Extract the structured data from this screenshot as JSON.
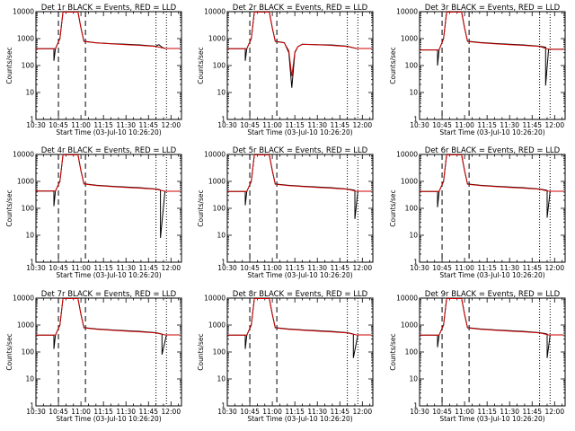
{
  "chart_data": [
    {
      "type": "line",
      "title": "Det 1r BLACK = Events, RED = LLD",
      "xlabel": "Start Time (03-Jul-10 10:26:20)",
      "ylabel": "Counts/sec",
      "xlim": [
        "10:30",
        "12:07"
      ],
      "ylim": [
        1,
        10000
      ],
      "yscale": "log",
      "x_ticks": [
        "10:30",
        "10:45",
        "11:00",
        "11:15",
        "11:30",
        "11:45",
        "12:00"
      ],
      "y_ticks": [
        "1",
        "10",
        "100",
        "1000",
        "10000"
      ],
      "dashed_lines": [
        "10:45",
        "11:03"
      ],
      "dotted_lines": [
        "11:50",
        "11:57"
      ],
      "series": [
        {
          "color": "#000000",
          "x": [
            "10:30",
            "10:42",
            "10:42",
            "10:43",
            "10:46",
            "10:48",
            "10:58",
            "11:00",
            "11:02",
            "11:10",
            "11:20",
            "11:30",
            "11:40",
            "11:50",
            "11:52",
            "11:54",
            "11:56",
            "12:06"
          ],
          "values": [
            420,
            420,
            150,
            420,
            1000,
            12000,
            12000,
            2500,
            800,
            700,
            650,
            620,
            580,
            520,
            600,
            480,
            430,
            430
          ]
        },
        {
          "color": "#cc0000",
          "x": [
            "10:30",
            "10:43",
            "10:46",
            "10:48",
            "10:58",
            "11:00",
            "11:02",
            "11:10",
            "11:20",
            "11:30",
            "11:40",
            "11:50",
            "11:56",
            "12:06"
          ],
          "values": [
            420,
            420,
            1000,
            12000,
            12000,
            2500,
            780,
            690,
            640,
            600,
            560,
            510,
            430,
            430
          ]
        }
      ]
    },
    {
      "type": "line",
      "title": "Det 2r BLACK = Events, RED = LLD",
      "xlabel": "Start Time (03-Jul-10 10:26:20)",
      "ylabel": "Counts/sec",
      "xlim": [
        "10:30",
        "12:07"
      ],
      "ylim": [
        1,
        10000
      ],
      "yscale": "log",
      "x_ticks": [
        "10:30",
        "10:45",
        "11:00",
        "11:15",
        "11:30",
        "11:45",
        "12:00"
      ],
      "y_ticks": [
        "1",
        "10",
        "100",
        "1000",
        "10000"
      ],
      "dashed_lines": [
        "10:45",
        "11:03"
      ],
      "dotted_lines": [
        "11:50",
        "11:57"
      ],
      "series": [
        {
          "color": "#000000",
          "x": [
            "10:30",
            "10:42",
            "10:42",
            "10:43",
            "10:46",
            "10:48",
            "10:58",
            "11:00",
            "11:02",
            "11:08",
            "11:11",
            "11:13",
            "11:15",
            "11:17",
            "11:20",
            "11:30",
            "11:40",
            "11:50",
            "11:56",
            "12:06"
          ],
          "values": [
            420,
            420,
            150,
            420,
            1000,
            12000,
            12000,
            2500,
            800,
            700,
            300,
            15,
            300,
            500,
            620,
            600,
            580,
            520,
            430,
            430
          ]
        },
        {
          "color": "#cc0000",
          "x": [
            "10:30",
            "10:43",
            "10:46",
            "10:48",
            "10:58",
            "11:00",
            "11:02",
            "11:08",
            "11:11",
            "11:13",
            "11:15",
            "11:17",
            "11:20",
            "11:30",
            "11:40",
            "11:50",
            "11:56",
            "12:06"
          ],
          "values": [
            420,
            420,
            1000,
            12000,
            12000,
            2500,
            780,
            690,
            350,
            40,
            320,
            500,
            610,
            590,
            560,
            510,
            430,
            430
          ]
        }
      ]
    },
    {
      "type": "line",
      "title": "Det 3r BLACK = Events, RED = LLD",
      "xlabel": "Start Time (03-Jul-10 10:26:20)",
      "ylabel": "Counts/sec",
      "xlim": [
        "10:30",
        "12:07"
      ],
      "ylim": [
        1,
        10000
      ],
      "yscale": "log",
      "x_ticks": [
        "10:30",
        "10:45",
        "11:00",
        "11:15",
        "11:30",
        "11:45",
        "12:00"
      ],
      "y_ticks": [
        "1",
        "10",
        "100",
        "1000",
        "10000"
      ],
      "dashed_lines": [
        "10:45",
        "11:03"
      ],
      "dotted_lines": [
        "11:50",
        "11:57"
      ],
      "series": [
        {
          "color": "#000000",
          "x": [
            "10:30",
            "10:42",
            "10:42",
            "10:43",
            "10:46",
            "10:48",
            "10:58",
            "11:00",
            "11:02",
            "11:10",
            "11:20",
            "11:30",
            "11:40",
            "11:50",
            "11:52",
            "11:54",
            "11:54",
            "11:56",
            "12:06"
          ],
          "values": [
            380,
            380,
            100,
            380,
            1000,
            12000,
            12000,
            2500,
            800,
            720,
            660,
            620,
            580,
            520,
            500,
            480,
            18,
            400,
            400
          ]
        },
        {
          "color": "#cc0000",
          "x": [
            "10:30",
            "10:43",
            "10:46",
            "10:48",
            "10:58",
            "11:00",
            "11:02",
            "11:10",
            "11:20",
            "11:30",
            "11:40",
            "11:50",
            "11:56",
            "12:06"
          ],
          "values": [
            380,
            380,
            1000,
            12000,
            12000,
            2500,
            780,
            700,
            640,
            600,
            560,
            510,
            400,
            400
          ]
        }
      ]
    },
    {
      "type": "line",
      "title": "Det 4r BLACK = Events, RED = LLD",
      "xlabel": "Start Time (03-Jul-10 10:26:20)",
      "ylabel": "Counts/sec",
      "xlim": [
        "10:30",
        "12:07"
      ],
      "ylim": [
        1,
        10000
      ],
      "yscale": "log",
      "x_ticks": [
        "10:30",
        "10:45",
        "11:00",
        "11:15",
        "11:30",
        "11:45",
        "12:00"
      ],
      "y_ticks": [
        "1",
        "10",
        "100",
        "1000",
        "10000"
      ],
      "dashed_lines": [
        "10:45",
        "11:03"
      ],
      "dotted_lines": [
        "11:50",
        "11:57"
      ],
      "series": [
        {
          "color": "#000000",
          "x": [
            "10:30",
            "10:42",
            "10:42",
            "10:43",
            "10:46",
            "10:48",
            "10:58",
            "11:00",
            "11:02",
            "11:10",
            "11:20",
            "11:30",
            "11:40",
            "11:50",
            "11:52",
            "11:53",
            "11:53",
            "11:56",
            "12:06"
          ],
          "values": [
            440,
            440,
            120,
            440,
            1000,
            12000,
            12000,
            2500,
            820,
            720,
            660,
            620,
            580,
            520,
            500,
            480,
            8,
            430,
            430
          ]
        },
        {
          "color": "#cc0000",
          "x": [
            "10:30",
            "10:43",
            "10:46",
            "10:48",
            "10:58",
            "11:00",
            "11:02",
            "11:10",
            "11:20",
            "11:30",
            "11:40",
            "11:50",
            "11:56",
            "12:06"
          ],
          "values": [
            440,
            440,
            1000,
            12000,
            12000,
            2500,
            800,
            700,
            640,
            600,
            560,
            510,
            430,
            430
          ]
        }
      ]
    },
    {
      "type": "line",
      "title": "Det 5r BLACK = Events, RED = LLD",
      "xlabel": "Start Time (03-Jul-10 10:26:20)",
      "ylabel": "Counts/sec",
      "xlim": [
        "10:30",
        "12:07"
      ],
      "ylim": [
        1,
        10000
      ],
      "yscale": "log",
      "x_ticks": [
        "10:30",
        "10:45",
        "11:00",
        "11:15",
        "11:30",
        "11:45",
        "12:00"
      ],
      "y_ticks": [
        "1",
        "10",
        "100",
        "1000",
        "10000"
      ],
      "dashed_lines": [
        "10:45",
        "11:03"
      ],
      "dotted_lines": [
        "11:50",
        "11:57"
      ],
      "series": [
        {
          "color": "#000000",
          "x": [
            "10:30",
            "10:42",
            "10:42",
            "10:43",
            "10:46",
            "10:48",
            "10:58",
            "11:00",
            "11:02",
            "11:10",
            "11:20",
            "11:30",
            "11:40",
            "11:50",
            "11:54",
            "11:55",
            "11:55",
            "11:57",
            "12:06"
          ],
          "values": [
            420,
            420,
            130,
            420,
            1000,
            12000,
            12000,
            2500,
            800,
            720,
            660,
            620,
            580,
            520,
            480,
            460,
            40,
            430,
            430
          ]
        },
        {
          "color": "#cc0000",
          "x": [
            "10:30",
            "10:43",
            "10:46",
            "10:48",
            "10:58",
            "11:00",
            "11:02",
            "11:10",
            "11:20",
            "11:30",
            "11:40",
            "11:50",
            "11:56",
            "12:06"
          ],
          "values": [
            420,
            420,
            1000,
            12000,
            12000,
            2500,
            780,
            700,
            640,
            600,
            560,
            510,
            430,
            430
          ]
        }
      ]
    },
    {
      "type": "line",
      "title": "Det 6r BLACK = Events, RED = LLD",
      "xlabel": "Start Time (03-Jul-10 10:26:20)",
      "ylabel": "Counts/sec",
      "xlim": [
        "10:30",
        "12:07"
      ],
      "ylim": [
        1,
        10000
      ],
      "yscale": "log",
      "x_ticks": [
        "10:30",
        "10:45",
        "11:00",
        "11:15",
        "11:30",
        "11:45",
        "12:00"
      ],
      "y_ticks": [
        "1",
        "10",
        "100",
        "1000",
        "10000"
      ],
      "dashed_lines": [
        "10:45",
        "11:03"
      ],
      "dotted_lines": [
        "11:50",
        "11:57"
      ],
      "series": [
        {
          "color": "#000000",
          "x": [
            "10:30",
            "10:42",
            "10:42",
            "10:43",
            "10:46",
            "10:48",
            "10:58",
            "11:00",
            "11:02",
            "11:10",
            "11:20",
            "11:30",
            "11:40",
            "11:50",
            "11:54",
            "11:55",
            "11:55",
            "11:57",
            "12:06"
          ],
          "values": [
            420,
            420,
            110,
            420,
            1000,
            12000,
            12000,
            2500,
            800,
            720,
            660,
            620,
            580,
            520,
            480,
            460,
            45,
            430,
            430
          ]
        },
        {
          "color": "#cc0000",
          "x": [
            "10:30",
            "10:43",
            "10:46",
            "10:48",
            "10:58",
            "11:00",
            "11:02",
            "11:10",
            "11:20",
            "11:30",
            "11:40",
            "11:50",
            "11:56",
            "12:06"
          ],
          "values": [
            420,
            420,
            1000,
            12000,
            12000,
            2500,
            780,
            700,
            640,
            600,
            560,
            510,
            430,
            430
          ]
        }
      ]
    },
    {
      "type": "line",
      "title": "Det 7r BLACK = Events, RED = LLD",
      "xlabel": "Start Time (03-Jul-10 10:26:20)",
      "ylabel": "Counts/sec",
      "xlim": [
        "10:30",
        "12:07"
      ],
      "ylim": [
        1,
        10000
      ],
      "yscale": "log",
      "x_ticks": [
        "10:30",
        "10:45",
        "11:00",
        "11:15",
        "11:30",
        "11:45",
        "12:00"
      ],
      "y_ticks": [
        "1",
        "10",
        "100",
        "1000",
        "10000"
      ],
      "dashed_lines": [
        "10:45",
        "11:03"
      ],
      "dotted_lines": [
        "11:50",
        "11:57"
      ],
      "series": [
        {
          "color": "#000000",
          "x": [
            "10:30",
            "10:42",
            "10:42",
            "10:43",
            "10:46",
            "10:48",
            "10:58",
            "11:00",
            "11:02",
            "11:10",
            "11:20",
            "11:30",
            "11:40",
            "11:50",
            "11:53",
            "11:54",
            "11:54",
            "11:57",
            "12:06"
          ],
          "values": [
            420,
            420,
            130,
            420,
            1000,
            12000,
            12000,
            2500,
            800,
            720,
            660,
            620,
            580,
            520,
            480,
            460,
            80,
            430,
            430
          ]
        },
        {
          "color": "#cc0000",
          "x": [
            "10:30",
            "10:43",
            "10:46",
            "10:48",
            "10:58",
            "11:00",
            "11:02",
            "11:10",
            "11:20",
            "11:30",
            "11:40",
            "11:50",
            "11:56",
            "12:06"
          ],
          "values": [
            420,
            420,
            1000,
            12000,
            12000,
            2500,
            780,
            700,
            640,
            600,
            560,
            510,
            430,
            430
          ]
        }
      ]
    },
    {
      "type": "line",
      "title": "Det 8r BLACK = Events, RED = LLD",
      "xlabel": "Start Time (03-Jul-10 10:26:20)",
      "ylabel": "Counts/sec",
      "xlim": [
        "10:30",
        "12:07"
      ],
      "ylim": [
        1,
        10000
      ],
      "yscale": "log",
      "x_ticks": [
        "10:30",
        "10:45",
        "11:00",
        "11:15",
        "11:30",
        "11:45",
        "12:00"
      ],
      "y_ticks": [
        "1",
        "10",
        "100",
        "1000",
        "10000"
      ],
      "dashed_lines": [
        "10:45",
        "11:03"
      ],
      "dotted_lines": [
        "11:50",
        "11:57"
      ],
      "series": [
        {
          "color": "#000000",
          "x": [
            "10:30",
            "10:42",
            "10:42",
            "10:43",
            "10:46",
            "10:48",
            "10:58",
            "11:00",
            "11:02",
            "11:10",
            "11:20",
            "11:30",
            "11:40",
            "11:50",
            "11:53",
            "11:54",
            "11:54",
            "11:57",
            "12:06"
          ],
          "values": [
            420,
            420,
            130,
            420,
            1000,
            12000,
            12000,
            2500,
            800,
            720,
            660,
            620,
            580,
            520,
            480,
            460,
            60,
            430,
            430
          ]
        },
        {
          "color": "#cc0000",
          "x": [
            "10:30",
            "10:43",
            "10:46",
            "10:48",
            "10:58",
            "11:00",
            "11:02",
            "11:10",
            "11:20",
            "11:30",
            "11:40",
            "11:50",
            "11:56",
            "12:06"
          ],
          "values": [
            420,
            420,
            1000,
            12000,
            12000,
            2500,
            780,
            700,
            640,
            600,
            560,
            510,
            430,
            430
          ]
        }
      ]
    },
    {
      "type": "line",
      "title": "Det 9r BLACK = Events, RED = LLD",
      "xlabel": "Start Time (03-Jul-10 10:26:20)",
      "ylabel": "Counts/sec",
      "xlim": [
        "10:30",
        "12:07"
      ],
      "ylim": [
        1,
        10000
      ],
      "yscale": "log",
      "x_ticks": [
        "10:30",
        "10:45",
        "11:00",
        "11:15",
        "11:30",
        "11:45",
        "12:00"
      ],
      "y_ticks": [
        "1",
        "10",
        "100",
        "1000",
        "10000"
      ],
      "dashed_lines": [
        "10:45",
        "11:03"
      ],
      "dotted_lines": [
        "11:50",
        "11:57"
      ],
      "series": [
        {
          "color": "#000000",
          "x": [
            "10:30",
            "10:42",
            "10:42",
            "10:43",
            "10:46",
            "10:48",
            "10:58",
            "11:00",
            "11:02",
            "11:10",
            "11:20",
            "11:30",
            "11:40",
            "11:50",
            "11:54",
            "11:55",
            "11:55",
            "11:57",
            "12:06"
          ],
          "values": [
            420,
            420,
            150,
            420,
            1000,
            12000,
            12000,
            2500,
            800,
            720,
            660,
            620,
            580,
            520,
            480,
            460,
            60,
            430,
            430
          ]
        },
        {
          "color": "#cc0000",
          "x": [
            "10:30",
            "10:43",
            "10:46",
            "10:48",
            "10:58",
            "11:00",
            "11:02",
            "11:10",
            "11:20",
            "11:30",
            "11:40",
            "11:50",
            "11:56",
            "12:06"
          ],
          "values": [
            420,
            420,
            1000,
            12000,
            12000,
            2500,
            780,
            700,
            640,
            600,
            560,
            510,
            430,
            430
          ]
        }
      ]
    }
  ]
}
